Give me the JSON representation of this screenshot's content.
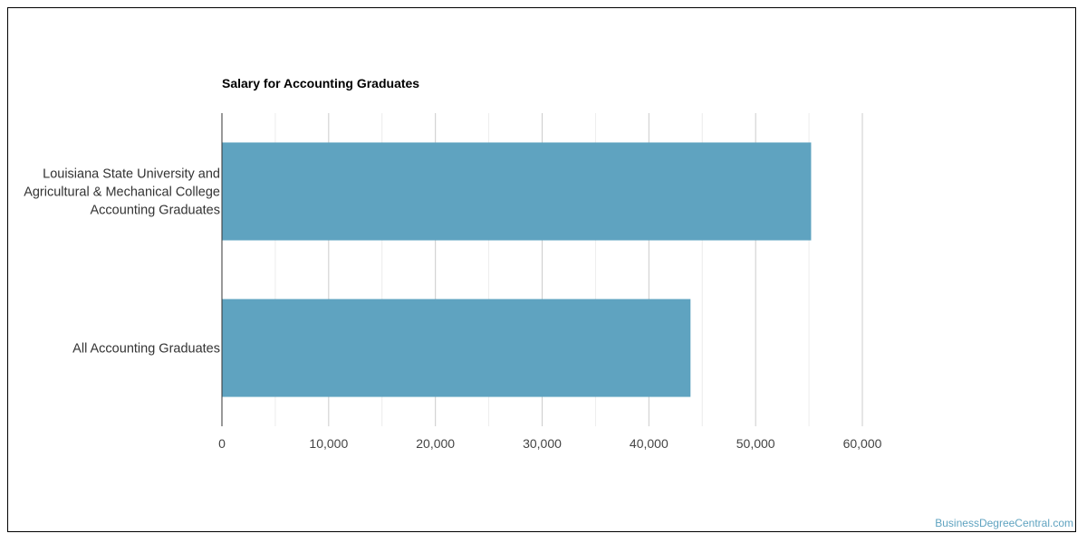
{
  "chart_data": {
    "type": "bar",
    "orientation": "horizontal",
    "title": "Salary for Accounting Graduates",
    "categories": [
      [
        "Louisiana State University and",
        "Agricultural & Mechanical College",
        "Accounting Graduates"
      ],
      [
        "All Accounting Graduates"
      ]
    ],
    "values": [
      55200,
      43900
    ],
    "xlim": [
      0,
      60000
    ],
    "xticks": [
      0,
      10000,
      20000,
      30000,
      40000,
      50000,
      60000
    ],
    "xtick_labels": [
      "0",
      "10,000",
      "20,000",
      "30,000",
      "40,000",
      "50,000",
      "60,000"
    ],
    "grid": true,
    "bar_color": "#5fa3c0",
    "xlabel": "",
    "ylabel": ""
  },
  "watermark": "BusinessDegreeCentral.com"
}
